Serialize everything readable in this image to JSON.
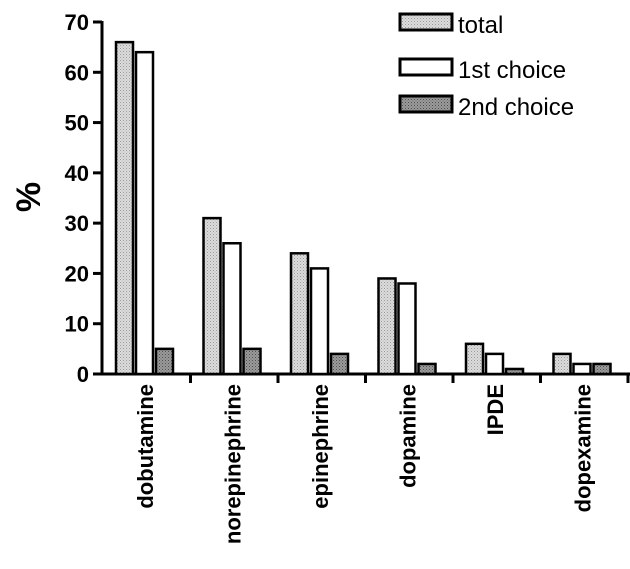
{
  "chart_data": {
    "type": "bar",
    "ylabel": "%",
    "xlabel": "",
    "ylim": [
      0,
      70
    ],
    "yticks": [
      0,
      10,
      20,
      30,
      40,
      50,
      60,
      70
    ],
    "categories": [
      "dobutamine",
      "norepinephrine",
      "epinephrine",
      "dopamine",
      "IPDE",
      "dopexamine"
    ],
    "series": [
      {
        "name": "total",
        "values": [
          66,
          31,
          24,
          19,
          6,
          4
        ],
        "color": "#c8c8c8",
        "pattern": "dotted-light"
      },
      {
        "name": "1st choice",
        "values": [
          64,
          26,
          21,
          18,
          4,
          2
        ],
        "color": "#ffffff",
        "pattern": "none"
      },
      {
        "name": "2nd choice",
        "values": [
          5,
          5,
          4,
          2,
          1,
          2
        ],
        "color": "#8a8a8a",
        "pattern": "dotted-dark"
      }
    ],
    "legend_position": "top-right",
    "grid": false
  }
}
